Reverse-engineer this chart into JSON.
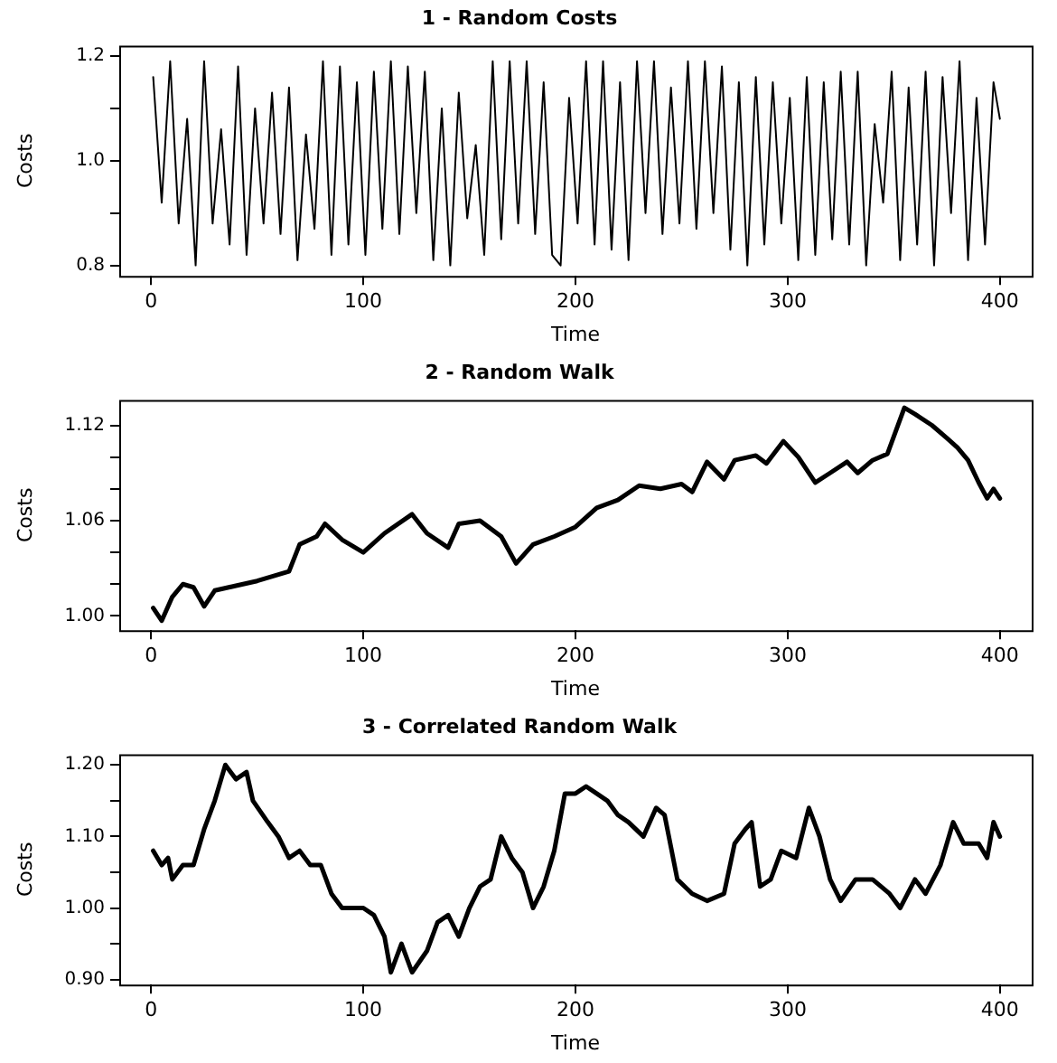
{
  "chart_data": [
    {
      "type": "line",
      "title": "1 - Random Costs",
      "xlabel": "Time",
      "ylabel": "Costs",
      "color": "#000000",
      "x": [
        1,
        5,
        9,
        13,
        17,
        21,
        25,
        29,
        33,
        37,
        41,
        45,
        49,
        53,
        57,
        61,
        65,
        69,
        73,
        77,
        81,
        85,
        89,
        93,
        97,
        101,
        105,
        109,
        113,
        117,
        121,
        125,
        129,
        133,
        137,
        141,
        145,
        149,
        153,
        157,
        161,
        165,
        169,
        173,
        177,
        181,
        185,
        189,
        193,
        197,
        201,
        205,
        209,
        213,
        217,
        221,
        225,
        229,
        233,
        237,
        241,
        245,
        249,
        253,
        257,
        261,
        265,
        269,
        273,
        277,
        281,
        285,
        289,
        293,
        297,
        301,
        305,
        309,
        313,
        317,
        321,
        325,
        329,
        333,
        337,
        341,
        345,
        349,
        353,
        357,
        361,
        365,
        369,
        373,
        377,
        381,
        385,
        389,
        393,
        397,
        400
      ],
      "values": [
        1.16,
        0.92,
        1.19,
        0.88,
        1.08,
        0.8,
        1.19,
        0.88,
        1.06,
        0.84,
        1.18,
        0.82,
        1.1,
        0.88,
        1.13,
        0.86,
        1.14,
        0.81,
        1.05,
        0.87,
        1.19,
        0.82,
        1.18,
        0.84,
        1.15,
        0.82,
        1.17,
        0.87,
        1.19,
        0.86,
        1.18,
        0.9,
        1.17,
        0.81,
        1.1,
        0.8,
        1.13,
        0.89,
        1.03,
        0.82,
        1.19,
        0.85,
        1.19,
        0.88,
        1.19,
        0.86,
        1.15,
        0.82,
        0.8,
        1.12,
        0.88,
        1.19,
        0.84,
        1.19,
        0.83,
        1.15,
        0.81,
        1.19,
        0.9,
        1.19,
        0.86,
        1.14,
        0.88,
        1.19,
        0.87,
        1.19,
        0.9,
        1.18,
        0.83,
        1.15,
        0.8,
        1.16,
        0.84,
        1.15,
        0.88,
        1.12,
        0.81,
        1.16,
        0.82,
        1.15,
        0.85,
        1.17,
        0.84,
        1.17,
        0.8,
        1.07,
        0.92,
        1.17,
        0.81,
        1.14,
        0.84,
        1.17,
        0.8,
        1.16,
        0.9,
        1.19,
        0.81,
        1.12,
        0.84,
        1.15,
        1.08
      ],
      "xlim": [
        -15,
        415
      ],
      "xticks": [
        0,
        100,
        200,
        300,
        400
      ],
      "ylim": [
        0.78,
        1.22
      ],
      "yticks": [
        0.8,
        {
          "value": 0.9,
          "label": null
        },
        {
          "value": 1.0,
          "label": "1.0"
        },
        {
          "value": 1.1,
          "label": null
        },
        1.2
      ]
    },
    {
      "type": "line",
      "title": "2 - Random Walk",
      "xlabel": "Time",
      "ylabel": "Costs",
      "color": "#000000",
      "x": [
        1,
        5,
        10,
        15,
        20,
        25,
        30,
        40,
        50,
        60,
        65,
        70,
        78,
        82,
        90,
        100,
        110,
        123,
        130,
        140,
        145,
        155,
        165,
        172,
        180,
        190,
        200,
        210,
        220,
        230,
        240,
        250,
        255,
        262,
        270,
        275,
        285,
        290,
        298,
        305,
        313,
        320,
        328,
        333,
        340,
        347,
        355,
        360,
        368,
        375,
        380,
        385,
        390,
        394,
        397,
        400
      ],
      "values": [
        1.005,
        0.997,
        1.012,
        1.02,
        1.018,
        1.006,
        1.016,
        1.019,
        1.022,
        1.026,
        1.028,
        1.045,
        1.05,
        1.058,
        1.048,
        1.04,
        1.052,
        1.064,
        1.052,
        1.043,
        1.058,
        1.06,
        1.05,
        1.033,
        1.045,
        1.05,
        1.056,
        1.068,
        1.073,
        1.082,
        1.08,
        1.083,
        1.078,
        1.097,
        1.086,
        1.098,
        1.101,
        1.096,
        1.11,
        1.1,
        1.084,
        1.09,
        1.097,
        1.09,
        1.098,
        1.102,
        1.131,
        1.127,
        1.12,
        1.112,
        1.106,
        1.098,
        1.084,
        1.074,
        1.08,
        1.074
      ],
      "xlim": [
        -15,
        415
      ],
      "xticks": [
        0,
        100,
        200,
        300,
        400
      ],
      "ylim": [
        0.991,
        1.136
      ],
      "yticks": [
        {
          "value": 1.0,
          "label": "1.00"
        },
        {
          "value": 1.02,
          "label": null
        },
        {
          "value": 1.04,
          "label": null
        },
        1.06,
        {
          "value": 1.08,
          "label": null
        },
        {
          "value": 1.1,
          "label": null
        },
        1.12
      ]
    },
    {
      "type": "line",
      "title": "3 - Correlated Random Walk",
      "xlabel": "Time",
      "ylabel": "Costs",
      "color": "#000000",
      "x": [
        1,
        5,
        8,
        10,
        15,
        20,
        25,
        30,
        35,
        40,
        45,
        48,
        55,
        60,
        65,
        70,
        75,
        80,
        85,
        90,
        95,
        100,
        105,
        110,
        113,
        118,
        123,
        130,
        135,
        140,
        145,
        150,
        155,
        160,
        165,
        170,
        175,
        180,
        185,
        190,
        195,
        200,
        205,
        210,
        215,
        220,
        225,
        232,
        238,
        242,
        248,
        255,
        262,
        270,
        275,
        280,
        283,
        287,
        292,
        297,
        304,
        310,
        315,
        320,
        325,
        332,
        340,
        348,
        353,
        360,
        365,
        372,
        378,
        383,
        390,
        394,
        397,
        400
      ],
      "values": [
        1.08,
        1.06,
        1.07,
        1.04,
        1.06,
        1.06,
        1.11,
        1.15,
        1.2,
        1.18,
        1.19,
        1.15,
        1.12,
        1.1,
        1.07,
        1.08,
        1.06,
        1.06,
        1.02,
        1.0,
        1.0,
        1.0,
        0.99,
        0.96,
        0.91,
        0.95,
        0.91,
        0.94,
        0.98,
        0.99,
        0.96,
        1.0,
        1.03,
        1.04,
        1.1,
        1.07,
        1.05,
        1.0,
        1.03,
        1.08,
        1.16,
        1.16,
        1.17,
        1.16,
        1.15,
        1.13,
        1.12,
        1.1,
        1.14,
        1.13,
        1.04,
        1.02,
        1.01,
        1.02,
        1.09,
        1.11,
        1.12,
        1.03,
        1.04,
        1.08,
        1.07,
        1.14,
        1.1,
        1.04,
        1.01,
        1.04,
        1.04,
        1.02,
        1.0,
        1.04,
        1.02,
        1.06,
        1.12,
        1.09,
        1.09,
        1.07,
        1.12,
        1.1
      ],
      "xlim": [
        -15,
        415
      ],
      "xticks": [
        0,
        100,
        200,
        300,
        400
      ],
      "ylim": [
        0.893,
        1.215
      ],
      "yticks": [
        {
          "value": 0.9,
          "label": "0.90"
        },
        {
          "value": 0.95,
          "label": null
        },
        {
          "value": 1.0,
          "label": "1.00"
        },
        {
          "value": 1.05,
          "label": null
        },
        {
          "value": 1.1,
          "label": "1.10"
        },
        {
          "value": 1.15,
          "label": null
        },
        {
          "value": 1.2,
          "label": "1.20"
        }
      ]
    }
  ]
}
